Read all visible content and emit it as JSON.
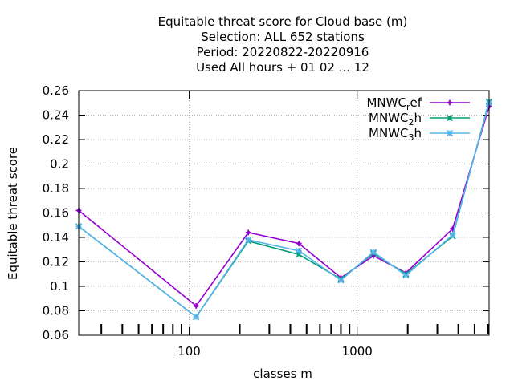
{
  "chart_data": {
    "type": "line",
    "title_lines": [
      "Equitable threat score  for Cloud base (m)",
      "Selection: ALL    652 stations",
      "Period: 20220822-20220916",
      "Used  All hours + 01 02 ... 12"
    ],
    "xlabel": "classes m",
    "ylabel": "Equitable threat score",
    "x_scale": "log",
    "xlim": [
      22,
      6100
    ],
    "ylim": [
      0.06,
      0.26
    ],
    "x_ticks": [
      {
        "value": 100,
        "label": "100"
      },
      {
        "value": 1000,
        "label": "1000"
      }
    ],
    "y_ticks": [
      {
        "value": 0.06,
        "label": "0.06"
      },
      {
        "value": 0.08,
        "label": "0.08"
      },
      {
        "value": 0.1,
        "label": "0.1"
      },
      {
        "value": 0.12,
        "label": "0.12"
      },
      {
        "value": 0.14,
        "label": "0.14"
      },
      {
        "value": 0.16,
        "label": "0.16"
      },
      {
        "value": 0.18,
        "label": "0.18"
      },
      {
        "value": 0.2,
        "label": "0.2"
      },
      {
        "value": 0.22,
        "label": "0.22"
      },
      {
        "value": 0.24,
        "label": "0.24"
      },
      {
        "value": 0.26,
        "label": "0.26"
      }
    ],
    "grid": true,
    "legend_position": "top-right",
    "x": [
      22,
      110,
      225,
      450,
      800,
      1250,
      1950,
      3700,
      6100
    ],
    "series": [
      {
        "name": "MNWC",
        "sub": "r",
        "suffix": "ef",
        "color": "#9400d3",
        "marker": "plus",
        "values": [
          0.162,
          0.084,
          0.144,
          0.135,
          0.107,
          0.125,
          0.111,
          0.147,
          0.247
        ]
      },
      {
        "name": "MNWC",
        "sub": "2",
        "suffix": "h",
        "color": "#009e73",
        "marker": "cross",
        "values": [
          0.149,
          0.075,
          0.137,
          0.126,
          0.106,
          0.127,
          0.11,
          0.141,
          0.251
        ]
      },
      {
        "name": "MNWC",
        "sub": "3",
        "suffix": "h",
        "color": "#56b4e9",
        "marker": "star",
        "values": [
          0.149,
          0.075,
          0.138,
          0.129,
          0.105,
          0.128,
          0.109,
          0.142,
          0.25
        ]
      }
    ]
  }
}
